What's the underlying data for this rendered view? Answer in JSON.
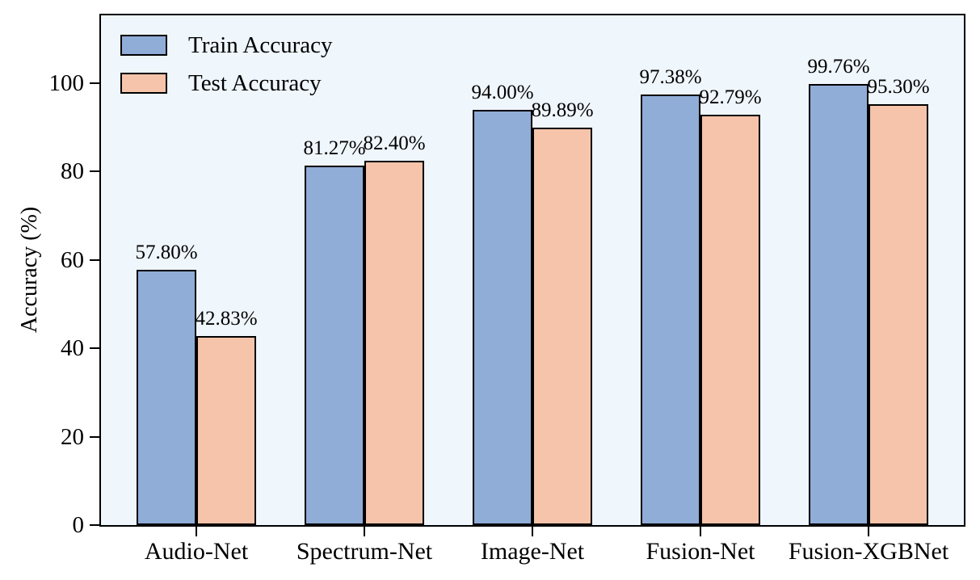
{
  "figure": {
    "background": "#ffffff",
    "plot_background": "#eff6fc",
    "axis_color": "#000000"
  },
  "legend": {
    "position": "upper left",
    "items": [
      {
        "label": "Train Accuracy",
        "color": "#90add8"
      },
      {
        "label": "Test Accuracy",
        "color": "#f5c4aa"
      }
    ]
  },
  "chart_data": {
    "type": "bar",
    "title": "",
    "xlabel": "",
    "ylabel": "Accuracy (%)",
    "categories": [
      "Audio-Net",
      "Spectrum-Net",
      "Image-Net",
      "Fusion-Net",
      "Fusion-XGBNet"
    ],
    "series": [
      {
        "name": "Train Accuracy",
        "color": "#90add8",
        "edge_color": "#000000",
        "values": [
          57.8,
          81.27,
          94.0,
          97.38,
          99.76
        ],
        "labels": [
          "57.80%",
          "81.27%",
          "94.00%",
          "97.38%",
          "99.76%"
        ]
      },
      {
        "name": "Test Accuracy",
        "color": "#f5c4aa",
        "edge_color": "#000000",
        "values": [
          42.83,
          82.4,
          89.89,
          92.79,
          95.3
        ],
        "labels": [
          "42.83%",
          "82.40%",
          "89.89%",
          "92.79%",
          "95.30%"
        ]
      }
    ],
    "yticks": [
      0,
      20,
      40,
      60,
      80,
      100
    ],
    "ytick_labels": [
      "0",
      "20",
      "40",
      "60",
      "80",
      "100"
    ],
    "ylim": [
      0,
      115
    ],
    "grid": false,
    "legend_position": "upper left"
  }
}
